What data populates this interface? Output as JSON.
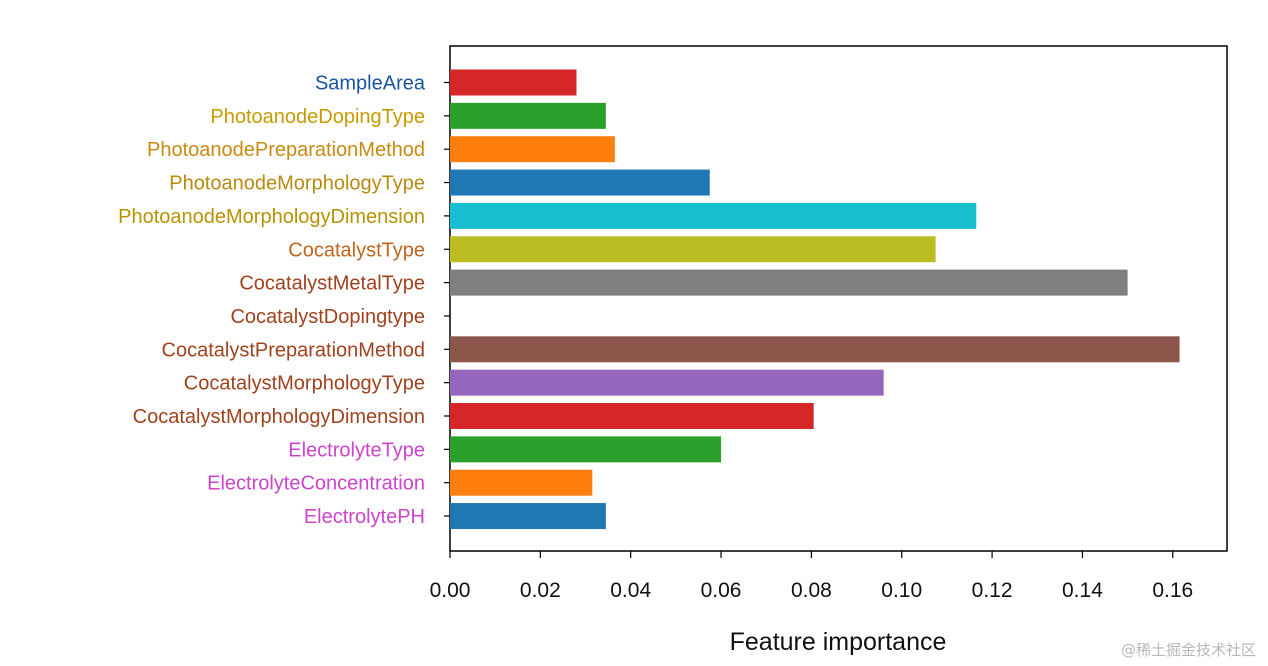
{
  "chart_data": {
    "type": "bar",
    "orientation": "horizontal",
    "title": "",
    "xlabel": "Feature importance",
    "ylabel": "",
    "xlim": [
      0,
      0.172
    ],
    "xticks": [
      "0.00",
      "0.02",
      "0.04",
      "0.06",
      "0.08",
      "0.10",
      "0.12",
      "0.14",
      "0.16"
    ],
    "grid": false,
    "categories": [
      "SampleArea",
      "PhotoanodeDopingType",
      "PhotoanodePreparationMethod",
      "PhotoanodeMorphologyType",
      "PhotoanodeMorphologyDimension",
      "CocatalystType",
      "CocatalystMetalType",
      "CocatalystDopingtype",
      "CocatalystPreparationMethod",
      "CocatalystMorphologyType",
      "CocatalystMorphologyDimension",
      "ElectrolyteType",
      "ElectrolyteConcentration",
      "ElectrolytePH"
    ],
    "values": [
      0.028,
      0.0345,
      0.0365,
      0.0575,
      0.1165,
      0.1075,
      0.15,
      0.0,
      0.1615,
      0.096,
      0.0805,
      0.06,
      0.0315,
      0.0345
    ],
    "bar_colors": [
      "#d62728",
      "#2ca02c",
      "#ff7f0e",
      "#1f77b4",
      "#17becf",
      "#bcbd22",
      "#7f7f7f",
      "#e377c2",
      "#8c564b",
      "#9467bd",
      "#d62728",
      "#2ca02c",
      "#ff7f0e",
      "#1f77b4"
    ],
    "label_colors": [
      "#1a55a0",
      "#c99a00",
      "#c98a10",
      "#b88a10",
      "#b89200",
      "#c0641e",
      "#a0421e",
      "#a0421e",
      "#a0421e",
      "#a0421e",
      "#a0421e",
      "#cc44cc",
      "#cc44cc",
      "#cc44cc"
    ]
  },
  "watermark": "@稀土掘金技术社区"
}
